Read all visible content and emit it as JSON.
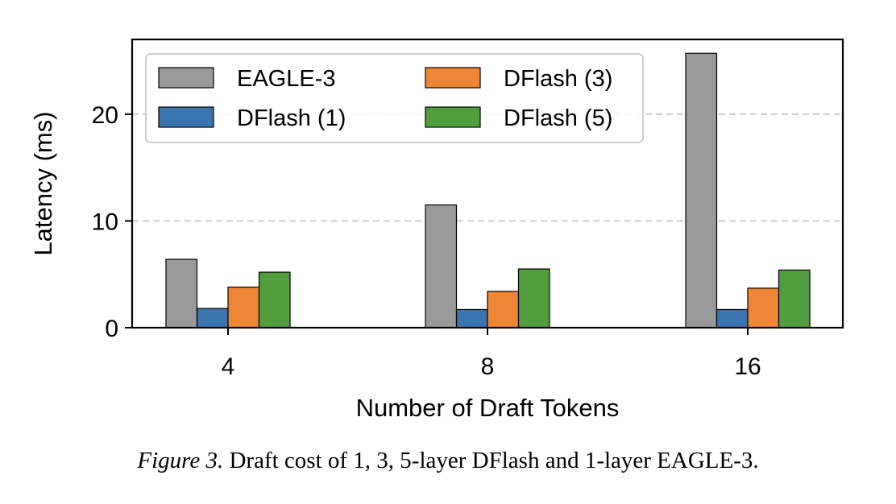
{
  "chart_data": {
    "type": "bar",
    "categories": [
      "4",
      "8",
      "16"
    ],
    "series": [
      {
        "name": "EAGLE-3",
        "color": "#999999",
        "values": [
          6.4,
          11.5,
          25.7
        ]
      },
      {
        "name": "DFlash (1)",
        "color": "#3b75af",
        "values": [
          1.8,
          1.7,
          1.7
        ]
      },
      {
        "name": "DFlash (3)",
        "color": "#ef8636",
        "values": [
          3.8,
          3.4,
          3.7
        ]
      },
      {
        "name": "DFlash (5)",
        "color": "#519e3e",
        "values": [
          5.2,
          5.5,
          5.4
        ]
      }
    ],
    "xlabel": "Number of Draft Tokens",
    "ylabel": "Latency (ms)",
    "ylim": [
      0,
      27
    ],
    "yticks": [
      0,
      10,
      20
    ],
    "grid": "horizontal-dashed",
    "legend_position": "top-left"
  },
  "caption": {
    "label": "Figure 3.",
    "text": "Draft cost of 1, 3, 5-layer DFlash and 1-layer EAGLE-3."
  }
}
